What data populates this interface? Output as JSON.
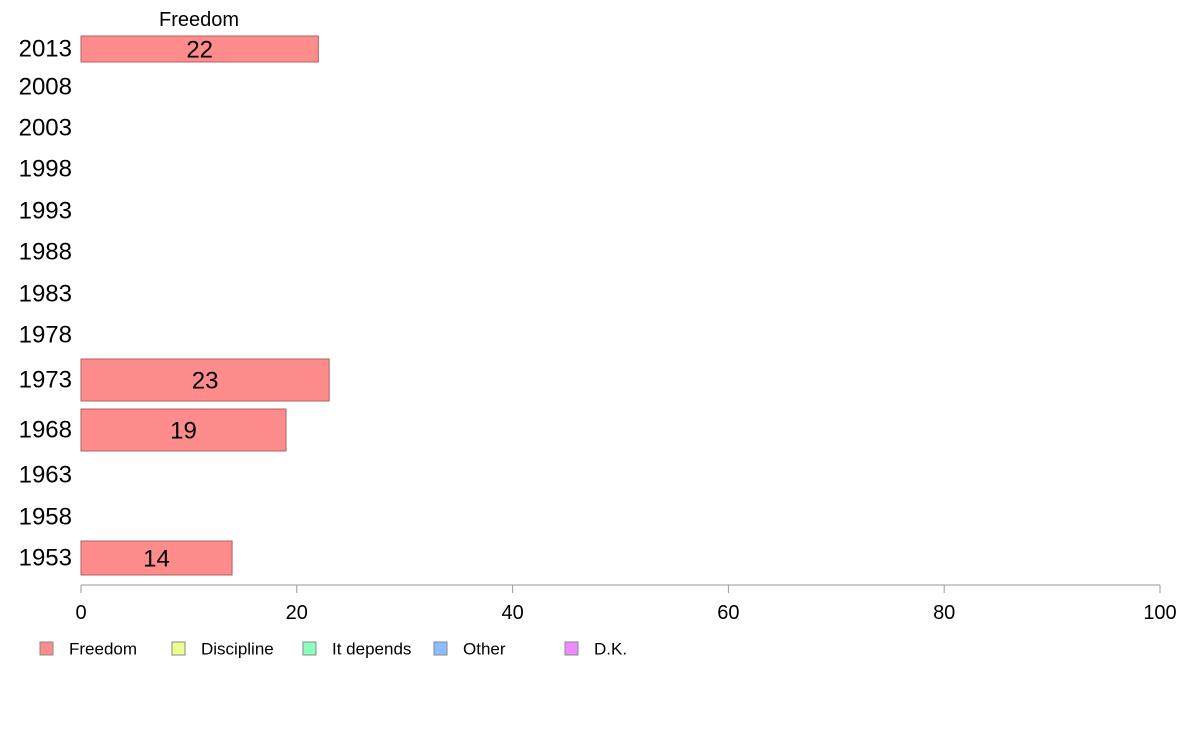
{
  "chart_data": {
    "type": "bar",
    "orientation": "horizontal",
    "column_header": "Freedom",
    "categories": [
      "2013",
      "2008",
      "2003",
      "1998",
      "1993",
      "1988",
      "1983",
      "1978",
      "1973",
      "1968",
      "1963",
      "1958",
      "1953"
    ],
    "series": [
      {
        "name": "Freedom",
        "color": "#ff8c8c",
        "values": [
          22,
          null,
          null,
          null,
          null,
          null,
          null,
          null,
          23,
          19,
          null,
          null,
          14
        ]
      }
    ],
    "xlim": [
      0,
      100
    ],
    "xticks": [
      "0",
      "20",
      "40",
      "60",
      "80",
      "100"
    ],
    "grid": false,
    "legend": {
      "placement": "bottom",
      "entries": [
        {
          "label": "Freedom",
          "color": "#ff8c8c"
        },
        {
          "label": "Discipline",
          "color": "#eeff8c"
        },
        {
          "label": "It depends",
          "color": "#8cffbd"
        },
        {
          "label": "Other",
          "color": "#8cbdff"
        },
        {
          "label": "D.K.",
          "color": "#ee8cff"
        }
      ]
    }
  }
}
